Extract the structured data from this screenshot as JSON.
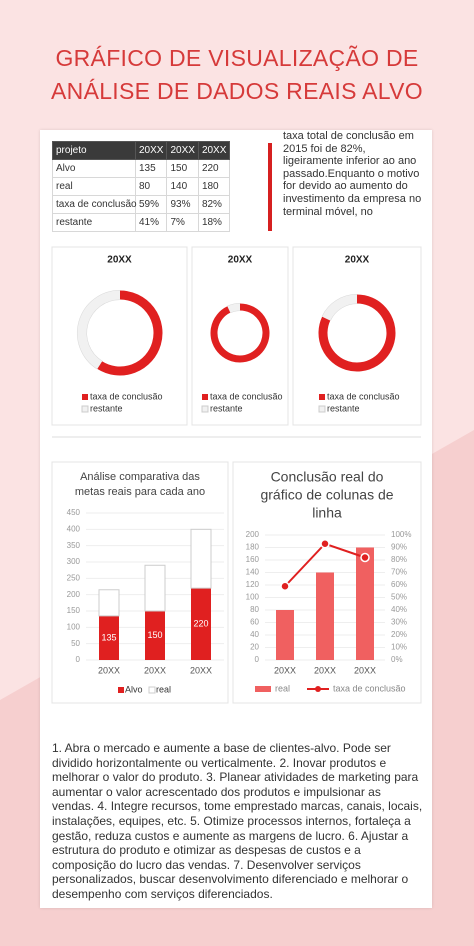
{
  "title": [
    "GRÁFICO DE VISUALIZAÇÃO DE",
    "ANÁLISE DE DADOS REAIS ALVO"
  ],
  "table": {
    "header": [
      "projeto",
      "20XX",
      "20XX",
      "20XX"
    ],
    "rows": [
      [
        "Alvo",
        "135",
        "150",
        "220"
      ],
      [
        "real",
        "80",
        "140",
        "180"
      ],
      [
        "taxa de conclusão",
        "59%",
        "93%",
        "82%"
      ],
      [
        "restante",
        "41%",
        "7%",
        "18%"
      ]
    ]
  },
  "note": "taxa total de conclusão em 2015 foi de 82%, ligeiramente inferior ao ano passado.Enquanto o motivo for devido ao aumento do investimento da empresa no terminal móvel, no",
  "chart_data": [
    {
      "type": "donut",
      "title": [
        "20XX"
      ],
      "categories": [
        "taxa de conclusão",
        "restante"
      ],
      "values": [
        59,
        41
      ],
      "colors": [
        "#e02020",
        "#f1f1f1"
      ]
    },
    {
      "type": "donut",
      "title": [
        "20XX"
      ],
      "categories": [
        "taxa de conclusão",
        "restante"
      ],
      "values": [
        93,
        7
      ],
      "colors": [
        "#e02020",
        "#f1f1f1"
      ]
    },
    {
      "type": "donut",
      "title": [
        "20XX"
      ],
      "categories": [
        "taxa de conclusão",
        "restante"
      ],
      "values": [
        82,
        18
      ],
      "colors": [
        "#e02020",
        "#f1f1f1"
      ]
    },
    {
      "type": "stacked_bar",
      "title": [
        "Análise comparativa das",
        "metas reais para cada ano"
      ],
      "categories": [
        "20XX",
        "20XX",
        "20XX"
      ],
      "series": [
        {
          "name": "Alvo",
          "color": "#e02020",
          "values": [
            135,
            150,
            220
          ],
          "show_labels": true
        },
        {
          "name": "real",
          "color": "#ffffff",
          "values": [
            80,
            140,
            180
          ],
          "show_labels": false
        }
      ],
      "ylim": [
        0,
        450
      ],
      "yticks": [
        0,
        50,
        100,
        150,
        200,
        250,
        300,
        350,
        400,
        450
      ],
      "grid": true
    },
    {
      "type": "combo",
      "title": [
        "Conclusão real do",
        "gráfico de colunas de",
        "linha"
      ],
      "categories": [
        "20XX",
        "20XX",
        "20XX"
      ],
      "series": [
        {
          "name": "real",
          "type": "bar",
          "color": "#f06060",
          "values": [
            80,
            140,
            180
          ]
        },
        {
          "name": "taxa de conclusão",
          "type": "line",
          "axis": "y2",
          "color": "#e02020",
          "values": [
            59,
            93,
            82
          ]
        }
      ],
      "ylim": [
        0,
        200
      ],
      "yticks": [
        0,
        20,
        40,
        60,
        80,
        100,
        120,
        140,
        160,
        180,
        200
      ],
      "y2lim": [
        0,
        100
      ],
      "y2ticks": [
        {
          "value": 0,
          "label": "0%"
        },
        {
          "value": 10,
          "label": "10%"
        },
        {
          "value": 20,
          "label": "20%"
        },
        {
          "value": 30,
          "label": "30%"
        },
        {
          "value": 40,
          "label": "40%"
        },
        {
          "value": 50,
          "label": "50%"
        },
        {
          "value": 60,
          "label": "60%"
        },
        {
          "value": 70,
          "label": "70%"
        },
        {
          "value": 80,
          "label": "80%"
        },
        {
          "value": 90,
          "label": "90%"
        },
        {
          "value": 100,
          "label": "100%"
        }
      ],
      "grid": true
    }
  ],
  "footer_text": "1. Abra o mercado e aumente a base de clientes-alvo. Pode ser dividido horizontalmente ou verticalmente. 2. Inovar produtos e melhorar o valor do produto. 3. Planear atividades de marketing para aumentar o valor acrescentado dos produtos e impulsionar as vendas. 4. Integre recursos, tome emprestado marcas, canais, locais, instalações, equipes, etc. 5. Otimize processos internos, fortaleça a gestão, reduza custos e aumente as margens de lucro. 6. Ajustar a estrutura do produto e otimizar as despesas de custos e a composição do lucro das vendas. 7. Desenvolver serviços personalizados, buscar desenvolvimento diferenciado e melhorar o desempenho com serviços diferenciados."
}
